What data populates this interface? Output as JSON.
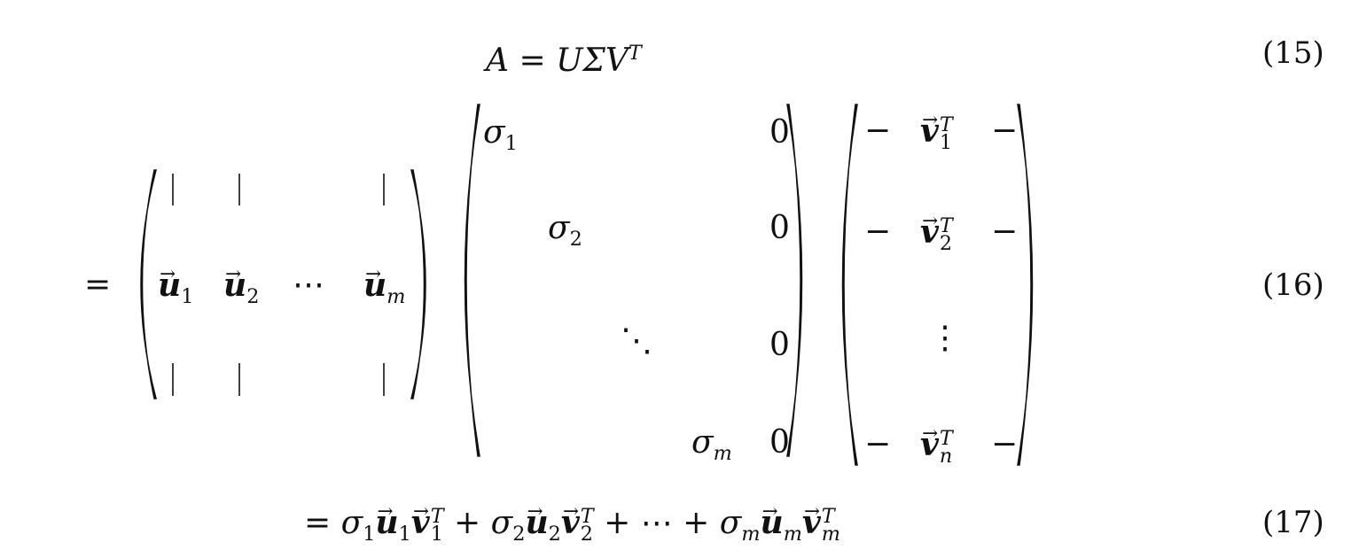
{
  "equations": [
    {
      "label": "(15)",
      "lhs": "A",
      "eq": "=",
      "rhs": "UΣV",
      "rhs_sup": "T"
    },
    {
      "label": "(16)",
      "eq": "=",
      "U_matrix": {
        "columns": [
          {
            "t": "u",
            "sub": "1"
          },
          {
            "t": "u",
            "sub": "2"
          },
          {
            "t": "⋯"
          },
          {
            "t": "u",
            "sub": "m"
          }
        ],
        "bar": "|"
      },
      "Sigma_matrix": {
        "cells": [
          {
            "t": "σ",
            "sub": "1"
          },
          {
            "t": "0"
          },
          {
            "t": "σ",
            "sub": "2"
          },
          {
            "t": "0"
          },
          {
            "t": "⋱"
          },
          {
            "t": "0"
          },
          {
            "t": "σ",
            "sub": "m"
          },
          {
            "t": "0"
          }
        ]
      },
      "V_matrix": {
        "dash": "−",
        "rows": [
          {
            "t": "v",
            "sub": "1",
            "sup": "T"
          },
          {
            "t": "v",
            "sub": "2",
            "sup": "T"
          },
          {
            "t": "⋮"
          },
          {
            "t": "v",
            "sub": "n",
            "sup": "T"
          }
        ]
      }
    },
    {
      "label": "(17)",
      "eq": "=",
      "terms": [
        {
          "sigma": "σ",
          "i": "1"
        },
        {
          "op": "+"
        },
        {
          "sigma": "σ",
          "i": "2"
        },
        {
          "op": "+"
        },
        {
          "op": "⋯"
        },
        {
          "op": "+"
        },
        {
          "sigma": "σ",
          "i": "m"
        }
      ],
      "u": "u",
      "v": "v",
      "sup": "T"
    }
  ]
}
